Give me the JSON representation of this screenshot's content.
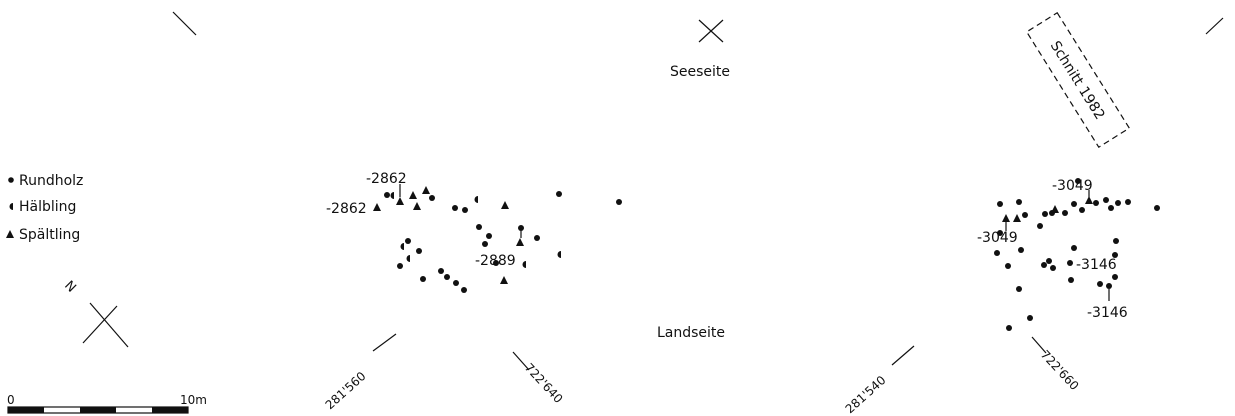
{
  "labels": {
    "seaside": "Seeseite",
    "landside": "Landseite",
    "section": "Schnitt 1982"
  },
  "legend": {
    "rundholz": "Rundholz",
    "halbling": "Hälbling",
    "spaltling": "Spältling"
  },
  "north": "N",
  "scale": {
    "start": "0",
    "end": "10m"
  },
  "coordinates": {
    "left_x": "281'560",
    "left_y": "722'640",
    "right_x": "281'540",
    "right_y": "722'660"
  },
  "dates": {
    "l1": "-2862",
    "l2": "-2862",
    "l3": "-2889",
    "r1": "-3049",
    "r2": "-3049",
    "r3": "-3146",
    "r4": "-3146"
  }
}
